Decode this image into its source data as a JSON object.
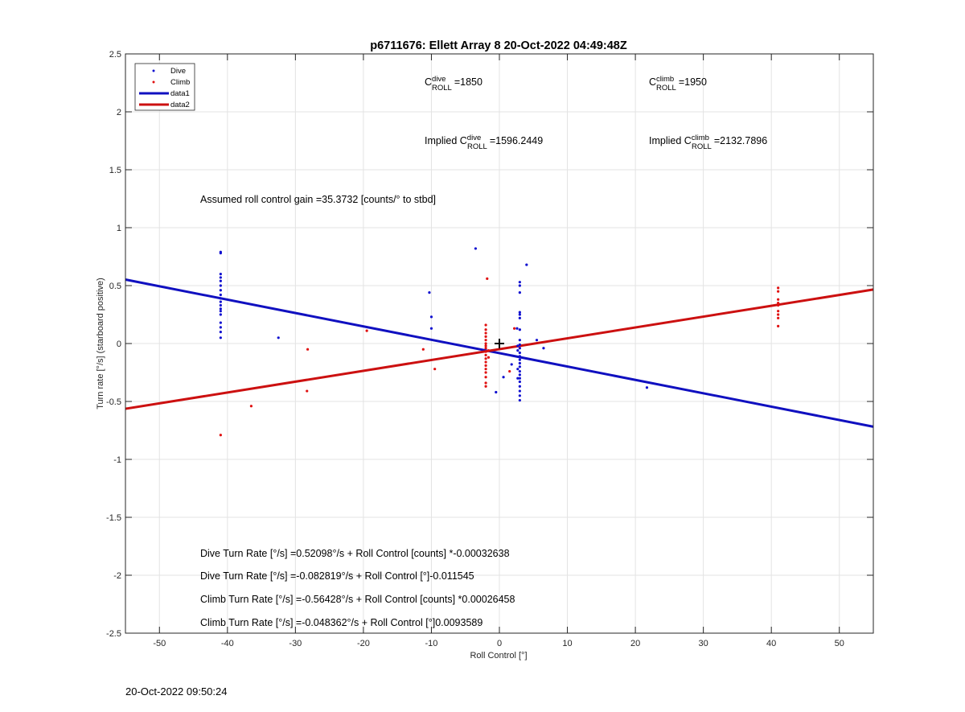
{
  "chart_data": {
    "type": "scatter",
    "title": "p6711676: Ellett Array 8 20-Oct-2022 04:49:48Z",
    "xlabel": "Roll Control [°]",
    "ylabel": "Turn rate [°/s] (starboard positive)",
    "xlim": [
      -55,
      55
    ],
    "ylim": [
      -2.5,
      2.5
    ],
    "xticks": [
      -50,
      -40,
      -30,
      -20,
      -10,
      0,
      10,
      20,
      30,
      40,
      50
    ],
    "yticks": [
      -2.5,
      -2,
      -1.5,
      -1,
      -0.5,
      0,
      0.5,
      1,
      1.5,
      2,
      2.5
    ],
    "xtick_labels": [
      "-50",
      "-40",
      "-30",
      "-20",
      "-10",
      "0",
      "10",
      "20",
      "30",
      "40",
      "50"
    ],
    "ytick_labels": [
      "-2.5",
      "-2",
      "-1.5",
      "-1",
      "-0.5",
      "0",
      "0.5",
      "1",
      "1.5",
      "2",
      "2.5"
    ],
    "grid": true,
    "legend_position": "top-left",
    "legend": [
      "Dive",
      "Climb",
      "data1",
      "data2"
    ],
    "series": [
      {
        "name": "Dive",
        "kind": "points",
        "color": "#1010d0",
        "points": [
          [
            -41,
            0.79
          ],
          [
            -41,
            0.78
          ],
          [
            -41,
            0.6
          ],
          [
            -41,
            0.57
          ],
          [
            -41,
            0.54
          ],
          [
            -41,
            0.5
          ],
          [
            -41,
            0.46
          ],
          [
            -41,
            0.42
          ],
          [
            -41,
            0.39
          ],
          [
            -41,
            0.36
          ],
          [
            -41,
            0.33
          ],
          [
            -41,
            0.3
          ],
          [
            -41,
            0.28
          ],
          [
            -41,
            0.25
          ],
          [
            -41,
            0.18
          ],
          [
            -41,
            0.14
          ],
          [
            -41,
            0.1
          ],
          [
            -41,
            0.05
          ],
          [
            -32.5,
            0.05
          ],
          [
            -10.3,
            0.44
          ],
          [
            -10,
            0.23
          ],
          [
            -10,
            0.13
          ],
          [
            -3.5,
            0.82
          ],
          [
            -0.5,
            -0.42
          ],
          [
            0.6,
            -0.29
          ],
          [
            1.8,
            -0.18
          ],
          [
            2.6,
            0.13
          ],
          [
            3,
            0.53
          ],
          [
            3,
            0.5
          ],
          [
            3,
            0.44
          ],
          [
            3,
            0.27
          ],
          [
            3,
            0.25
          ],
          [
            3,
            0.22
          ],
          [
            3,
            0.12
          ],
          [
            3,
            0.03
          ],
          [
            3,
            -0.01
          ],
          [
            3,
            -0.04
          ],
          [
            3,
            -0.08
          ],
          [
            3,
            -0.11
          ],
          [
            3,
            -0.14
          ],
          [
            3,
            -0.17
          ],
          [
            3,
            -0.2
          ],
          [
            3,
            -0.24
          ],
          [
            3,
            -0.27
          ],
          [
            3,
            -0.3
          ],
          [
            3,
            -0.33
          ],
          [
            3,
            -0.37
          ],
          [
            3,
            -0.41
          ],
          [
            3,
            -0.45
          ],
          [
            3,
            -0.49
          ],
          [
            2.7,
            -0.02
          ],
          [
            2.7,
            -0.06
          ],
          [
            2.7,
            -0.22
          ],
          [
            2.7,
            -0.3
          ],
          [
            4,
            0.68
          ],
          [
            5.5,
            0.03
          ],
          [
            6.5,
            -0.04
          ],
          [
            21.7,
            -0.38
          ]
        ]
      },
      {
        "name": "Climb",
        "kind": "points",
        "color": "#e01010",
        "points": [
          [
            -41,
            -0.79
          ],
          [
            -36.5,
            -0.54
          ],
          [
            -28.2,
            -0.05
          ],
          [
            -28.3,
            -0.41
          ],
          [
            -19.5,
            0.11
          ],
          [
            -11.2,
            -0.05
          ],
          [
            -9.5,
            -0.22
          ],
          [
            -1.8,
            0.56
          ],
          [
            -2,
            0.16
          ],
          [
            -2,
            0.12
          ],
          [
            -2,
            0.09
          ],
          [
            -2,
            0.06
          ],
          [
            -2,
            0.03
          ],
          [
            -2,
            0
          ],
          [
            -2,
            -0.02
          ],
          [
            -2,
            -0.04
          ],
          [
            -2,
            -0.07
          ],
          [
            -2,
            -0.1
          ],
          [
            -2,
            -0.13
          ],
          [
            -2,
            -0.16
          ],
          [
            -2,
            -0.19
          ],
          [
            -2,
            -0.22
          ],
          [
            -2,
            -0.25
          ],
          [
            -2,
            -0.29
          ],
          [
            -2,
            -0.34
          ],
          [
            -2,
            -0.37
          ],
          [
            -1.6,
            -0.06
          ],
          [
            -1.6,
            -0.12
          ],
          [
            2.2,
            0.13
          ],
          [
            1.5,
            -0.24
          ],
          [
            41,
            0.48
          ],
          [
            41,
            0.45
          ],
          [
            41,
            0.38
          ],
          [
            41,
            0.35
          ],
          [
            41,
            0.33
          ],
          [
            41,
            0.28
          ],
          [
            41,
            0.25
          ],
          [
            41,
            0.22
          ],
          [
            41,
            0.15
          ]
        ]
      },
      {
        "name": "data1",
        "kind": "line",
        "color": "#1010c0",
        "points": [
          [
            -55,
            0.552
          ],
          [
            55,
            -0.718
          ]
        ]
      },
      {
        "name": "data2",
        "kind": "line",
        "color": "#cc1010",
        "points": [
          [
            -55,
            -0.563
          ],
          [
            55,
            0.466
          ]
        ]
      }
    ],
    "crosshair_marker": [
      0,
      0
    ],
    "annotations": {
      "c_dive": {
        "prefix": "C",
        "sup": "dive",
        "sub": "ROLL",
        "value": "=1850"
      },
      "c_climb": {
        "prefix": "C",
        "sup": "climb",
        "sub": "ROLL",
        "value": "=1950"
      },
      "implied_dive": {
        "prefix": "Implied C",
        "sup": "dive",
        "sub": "ROLL",
        "value": "=1596.2449"
      },
      "implied_climb": {
        "prefix": "Implied C",
        "sup": "climb",
        "sub": "ROLL",
        "value": "=2132.7896"
      },
      "gain": "Assumed roll control gain =35.3732 [counts/° to stbd]",
      "eq1": "Dive Turn Rate [°/s] =0.52098°/s + Roll Control [counts] *-0.00032638",
      "eq2": "Dive Turn Rate [°/s] =-0.082819°/s + Roll Control [°]-0.011545",
      "eq3": "Climb Turn Rate [°/s] =-0.56428°/s + Roll Control [counts] *0.00026458",
      "eq4": "Climb Turn Rate [°/s] =-0.048362°/s + Roll Control [°]0.0093589"
    }
  },
  "footer": {
    "timestamp": "20-Oct-2022 09:50:24"
  }
}
